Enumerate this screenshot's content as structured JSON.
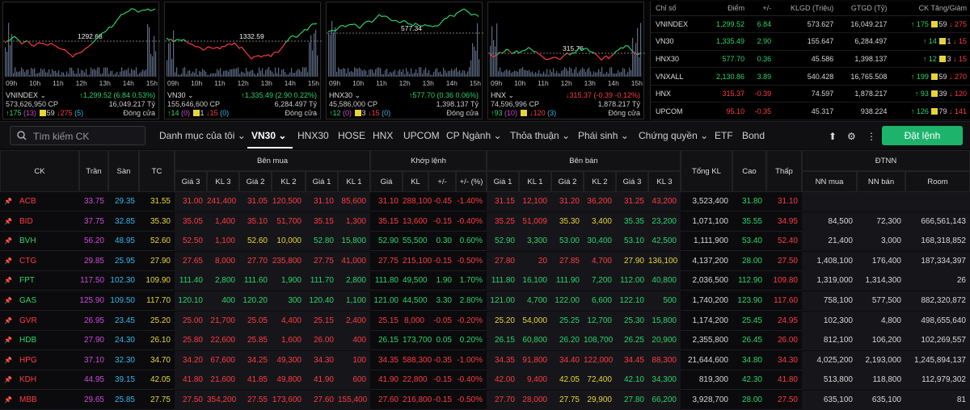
{
  "colors": {
    "up": "#2bd46b",
    "down": "#ff3b42",
    "ref": "#e6d43a",
    "ceil": "#cc4bd8",
    "floor": "#36b6e8",
    "text": "#d8d8d8",
    "accent": "#1db36b"
  },
  "cards": [
    {
      "name": "VNINDEX",
      "value": "↑1,299.52 (6.84 0.53%)",
      "volume": "573,626,950 CP",
      "gt": "16,049.217 Tỷ",
      "adv": "↑175",
      "adv_ceil": "(13)",
      "ref": "59",
      "dec": "↓275",
      "dec_floor": "(5)",
      "status": "Đóng cửa",
      "ref_label": "1292.68",
      "dir": "up"
    },
    {
      "name": "VN30",
      "value": "↑1,335.49 (2.90 0.22%)",
      "volume": "155,646,600 CP",
      "gt": "6,284.497 Tỷ",
      "adv": "↑14",
      "adv_ceil": "(0)",
      "ref": "1",
      "dec": "↓15",
      "dec_floor": "(0)",
      "status": "Đóng cửa",
      "ref_label": "1332.59",
      "dir": "up"
    },
    {
      "name": "HNX30",
      "value": "↑577.70 (0.36 0.06%)",
      "volume": "45,586,000 CP",
      "gt": "1,398.137 Tỷ",
      "adv": "↑12",
      "adv_ceil": "(0)",
      "ref": "3",
      "dec": "↓15",
      "dec_floor": "(0)",
      "status": "Đóng cửa",
      "ref_label": "577.34",
      "dir": "up"
    },
    {
      "name": "HNX",
      "value": "↓315.37 (-0.39 -0.12%)",
      "volume": "74,596,996 CP",
      "gt": "1,878.217 Tỷ",
      "adv": "↑93",
      "adv_ceil": "(10)",
      "ref": "",
      "dec": "↓120",
      "dec_floor": "(3)",
      "status": "Đóng cửa",
      "ref_label": "315.76",
      "dir": "down"
    }
  ],
  "hours": [
    "09h",
    "10h",
    "11h",
    "12h",
    "13h",
    "14h",
    "15h"
  ],
  "index_table": {
    "headers": [
      "Chỉ số",
      "Điểm",
      "+/-",
      "KLGD (Triệu)",
      "GTGD (Tỷ)",
      "CK Tăng/Giảm"
    ],
    "rows": [
      {
        "name": "VNINDEX",
        "point": "1,299.52",
        "chg": "6.84",
        "kl": "573.627",
        "gt": "16,049.217",
        "up": "↑ 175",
        "ref": "59",
        "down": "↓ 275",
        "dir": "up"
      },
      {
        "name": "VN30",
        "point": "1,335.49",
        "chg": "2.90",
        "kl": "155.647",
        "gt": "6,284.497",
        "up": "↑ 14",
        "ref": "1",
        "down": "↓ 15",
        "dir": "up"
      },
      {
        "name": "HNX30",
        "point": "577.70",
        "chg": "0.36",
        "kl": "45.586",
        "gt": "1,398.137",
        "up": "↑ 12",
        "ref": "3",
        "down": "↓ 15",
        "dir": "up"
      },
      {
        "name": "VNXALL",
        "point": "2,130.86",
        "chg": "3.89",
        "kl": "540.428",
        "gt": "16,765.508",
        "up": "↑ 199",
        "ref": "59",
        "down": "↓ 270",
        "dir": "up"
      },
      {
        "name": "HNX",
        "point": "315.37",
        "chg": "-0.39",
        "kl": "74.597",
        "gt": "1,878.217",
        "up": "↑ 93",
        "ref": "39",
        "down": "↓ 120",
        "dir": "down"
      },
      {
        "name": "UPCOM",
        "point": "95.10",
        "chg": "-0.35",
        "kl": "45.317",
        "gt": "938.224",
        "up": "↑ 126",
        "ref": "79",
        "down": "↓ 141",
        "dir": "down"
      }
    ]
  },
  "nav": {
    "search_placeholder": "Tìm kiếm CK",
    "tabs": [
      "Danh mục của tôi ⌄",
      "VN30 ⌄",
      "HNX30",
      "HOSE",
      "HNX",
      "UPCOM",
      "CP Ngành ⌄",
      "Thỏa thuận ⌄",
      "Phái sinh ⌄",
      "Chứng quyền ⌄",
      "ETF",
      "Bond"
    ],
    "order_button": "Đặt lệnh"
  },
  "table_headers": {
    "top": {
      "buy": "Bên mua",
      "match": "Khớp lệnh",
      "sell": "Bên bán",
      "foreign": "ĐTNN"
    },
    "main": {
      "ck": "CK",
      "ceil": "Trần",
      "floor": "Sàn",
      "ref": "TC",
      "total": "Tổng KL",
      "high": "Cao",
      "low": "Thấp"
    },
    "sub": [
      "Giá 3",
      "KL 3",
      "Giá 2",
      "KL 2",
      "Giá 1",
      "KL 1",
      "Giá",
      "KL",
      "+/-",
      "+/- (%)",
      "Giá 1",
      "KL 1",
      "Giá 2",
      "KL 2",
      "Giá 3",
      "KL 3",
      "NN mua",
      "NN bán",
      "Room"
    ]
  },
  "stocks": [
    {
      "ck": "ACB",
      "c": "down",
      "tran": "33.75",
      "san": "29.35",
      "tc": "31.55",
      "b3": [
        "31.00",
        "241,400",
        "d"
      ],
      "b2": [
        "31.05",
        "120,500",
        "d"
      ],
      "b1": [
        "31.10",
        "85,600",
        "d"
      ],
      "m": [
        "31.10",
        "288,100",
        "-0.45",
        "-1.40%",
        "d"
      ],
      "s1": [
        "31.15",
        "12,100",
        "d"
      ],
      "s2": [
        "31.20",
        "36,200",
        "d"
      ],
      "s3": [
        "31.25",
        "43,200",
        "d"
      ],
      "tkl": "3,523,400",
      "cao": [
        "31.80",
        "u"
      ],
      "thap": [
        "31.10",
        "d"
      ],
      "nnm": "",
      "nnb": "",
      "room": ""
    },
    {
      "ck": "BID",
      "c": "down",
      "tran": "37.75",
      "san": "32.85",
      "tc": "35.30",
      "b3": [
        "35.05",
        "1,400",
        "d"
      ],
      "b2": [
        "35.10",
        "51,700",
        "d"
      ],
      "b1": [
        "35.15",
        "1,300",
        "d"
      ],
      "m": [
        "35.15",
        "13,600",
        "-0.15",
        "-0.40%",
        "d"
      ],
      "s1": [
        "35.25",
        "51,009",
        "d"
      ],
      "s2": [
        "35.30",
        "3,400",
        "r"
      ],
      "s3": [
        "35.35",
        "23,200",
        "u"
      ],
      "tkl": "1,071,100",
      "cao": [
        "35.55",
        "u"
      ],
      "thap": [
        "34.95",
        "d"
      ],
      "nnm": "84,500",
      "nnb": "72,300",
      "room": "666,561,143"
    },
    {
      "ck": "BVH",
      "c": "up",
      "tran": "56.20",
      "san": "48.95",
      "tc": "52.60",
      "b3": [
        "52.50",
        "1,100",
        "d"
      ],
      "b2": [
        "52.60",
        "10,000",
        "r"
      ],
      "b1": [
        "52.80",
        "15,800",
        "u"
      ],
      "m": [
        "52.90",
        "55,500",
        "0.30",
        "0.60%",
        "u"
      ],
      "s1": [
        "52.90",
        "3,300",
        "u"
      ],
      "s2": [
        "53.00",
        "30,400",
        "u"
      ],
      "s3": [
        "53.10",
        "42,500",
        "u"
      ],
      "tkl": "1,111,900",
      "cao": [
        "53.40",
        "u"
      ],
      "thap": [
        "52.40",
        "d"
      ],
      "nnm": "21,400",
      "nnb": "3,000",
      "room": "168,318,852"
    },
    {
      "ck": "CTG",
      "c": "down",
      "tran": "29.85",
      "san": "25.95",
      "tc": "27.90",
      "b3": [
        "27.65",
        "8,000",
        "d"
      ],
      "b2": [
        "27.70",
        "235,800",
        "d"
      ],
      "b1": [
        "27.75",
        "41,000",
        "d"
      ],
      "m": [
        "27.75",
        "215,100",
        "-0.15",
        "-0.50%",
        "d"
      ],
      "s1": [
        "27.80",
        "20",
        "d"
      ],
      "s2": [
        "27.85",
        "4,700",
        "d"
      ],
      "s3": [
        "27.90",
        "136,100",
        "r"
      ],
      "tkl": "4,137,200",
      "cao": [
        "28.00",
        "u"
      ],
      "thap": [
        "27.50",
        "d"
      ],
      "nnm": "1,408,100",
      "nnb": "176,400",
      "room": "187,334,397"
    },
    {
      "ck": "FPT",
      "c": "up",
      "tran": "117.50",
      "san": "102.30",
      "tc": "109.90",
      "b3": [
        "111.40",
        "2,800",
        "u"
      ],
      "b2": [
        "111.60",
        "1,900",
        "u"
      ],
      "b1": [
        "111.70",
        "2,800",
        "u"
      ],
      "m": [
        "111.80",
        "49,500",
        "1.90",
        "1.70%",
        "u"
      ],
      "s1": [
        "111.80",
        "16,100",
        "u"
      ],
      "s2": [
        "111.90",
        "7,200",
        "u"
      ],
      "s3": [
        "112.00",
        "40,800",
        "u"
      ],
      "tkl": "2,036,500",
      "cao": [
        "112.90",
        "u"
      ],
      "thap": [
        "109.80",
        "d"
      ],
      "nnm": "1,319,000",
      "nnb": "1,314,300",
      "room": "26"
    },
    {
      "ck": "GAS",
      "c": "up",
      "tran": "125.90",
      "san": "109.50",
      "tc": "117.70",
      "b3": [
        "120.10",
        "400",
        "u"
      ],
      "b2": [
        "120.20",
        "300",
        "u"
      ],
      "b1": [
        "120.40",
        "1,100",
        "u"
      ],
      "m": [
        "121.00",
        "44,500",
        "3.30",
        "2.80%",
        "u"
      ],
      "s1": [
        "121.00",
        "4,700",
        "u"
      ],
      "s2": [
        "122.00",
        "6,600",
        "u"
      ],
      "s3": [
        "122.10",
        "500",
        "u"
      ],
      "tkl": "1,740,200",
      "cao": [
        "123.90",
        "u"
      ],
      "thap": [
        "117.60",
        "d"
      ],
      "nnm": "758,100",
      "nnb": "577,500",
      "room": "882,320,872"
    },
    {
      "ck": "GVR",
      "c": "down",
      "tran": "26.95",
      "san": "23.45",
      "tc": "25.20",
      "b3": [
        "25.00",
        "21,700",
        "d"
      ],
      "b2": [
        "25.05",
        "4,400",
        "d"
      ],
      "b1": [
        "25.15",
        "2,400",
        "d"
      ],
      "m": [
        "25.15",
        "8,000",
        "-0.05",
        "-0.20%",
        "d"
      ],
      "s1": [
        "25.20",
        "54,000",
        "r"
      ],
      "s2": [
        "25.25",
        "12,700",
        "u"
      ],
      "s3": [
        "25.30",
        "15,800",
        "u"
      ],
      "tkl": "1,174,200",
      "cao": [
        "25.45",
        "u"
      ],
      "thap": [
        "24.95",
        "d"
      ],
      "nnm": "102,300",
      "nnb": "4,800",
      "room": "498,655,640"
    },
    {
      "ck": "HDB",
      "c": "up",
      "tran": "27.90",
      "san": "24.30",
      "tc": "26.10",
      "b3": [
        "25.80",
        "22,600",
        "d"
      ],
      "b2": [
        "25.85",
        "1,600",
        "d"
      ],
      "b1": [
        "26.00",
        "400",
        "d"
      ],
      "m": [
        "26.15",
        "173,700",
        "0.05",
        "0.20%",
        "u"
      ],
      "s1": [
        "26.15",
        "60,800",
        "u"
      ],
      "s2": [
        "26.20",
        "108,700",
        "u"
      ],
      "s3": [
        "26.25",
        "20,900",
        "u"
      ],
      "tkl": "2,355,800",
      "cao": [
        "26.45",
        "u"
      ],
      "thap": [
        "26.00",
        "d"
      ],
      "nnm": "812,100",
      "nnb": "106,200",
      "room": "102,269,557"
    },
    {
      "ck": "HPG",
      "c": "down",
      "tran": "37.10",
      "san": "32.30",
      "tc": "34.70",
      "b3": [
        "34.20",
        "67,600",
        "d"
      ],
      "b2": [
        "34.25",
        "49,300",
        "d"
      ],
      "b1": [
        "34.30",
        "100",
        "d"
      ],
      "m": [
        "34.35",
        "588,300",
        "-0.35",
        "-1.00%",
        "d"
      ],
      "s1": [
        "34.35",
        "91,800",
        "d"
      ],
      "s2": [
        "34.40",
        "122,000",
        "d"
      ],
      "s3": [
        "34.45",
        "88,300",
        "d"
      ],
      "tkl": "21,644,600",
      "cao": [
        "34.80",
        "u"
      ],
      "thap": [
        "34.30",
        "d"
      ],
      "nnm": "4,025,200",
      "nnb": "2,193,000",
      "room": "1,245,894,137"
    },
    {
      "ck": "KDH",
      "c": "down",
      "tran": "44.95",
      "san": "39.15",
      "tc": "42.05",
      "b3": [
        "41.80",
        "21,600",
        "d"
      ],
      "b2": [
        "41.85",
        "49,800",
        "d"
      ],
      "b1": [
        "41.90",
        "600",
        "d"
      ],
      "m": [
        "41.90",
        "22,800",
        "-0.15",
        "-0.40%",
        "d"
      ],
      "s1": [
        "42.00",
        "9,400",
        "d"
      ],
      "s2": [
        "42.05",
        "72,400",
        "r"
      ],
      "s3": [
        "42.10",
        "34,300",
        "u"
      ],
      "tkl": "819,300",
      "cao": [
        "42.30",
        "u"
      ],
      "thap": [
        "41.80",
        "d"
      ],
      "nnm": "513,800",
      "nnb": "118,800",
      "room": "112,979,302"
    },
    {
      "ck": "MBB",
      "c": "down",
      "tran": "29.65",
      "san": "25.85",
      "tc": "27.75",
      "b3": [
        "27.50",
        "354,200",
        "d"
      ],
      "b2": [
        "27.55",
        "173,600",
        "d"
      ],
      "b1": [
        "27.60",
        "155,400",
        "d"
      ],
      "m": [
        "27.60",
        "216,800",
        "-0.15",
        "-0.50%",
        "d"
      ],
      "s1": [
        "27.70",
        "28,000",
        "d"
      ],
      "s2": [
        "27.75",
        "29,900",
        "r"
      ],
      "s3": [
        "27.80",
        "66,200",
        "u"
      ],
      "tkl": "3,928,700",
      "cao": [
        "28.00",
        "u"
      ],
      "thap": [
        "27.50",
        "d"
      ],
      "nnm": "635,100",
      "nnb": "635,100",
      "room": "81"
    }
  ]
}
